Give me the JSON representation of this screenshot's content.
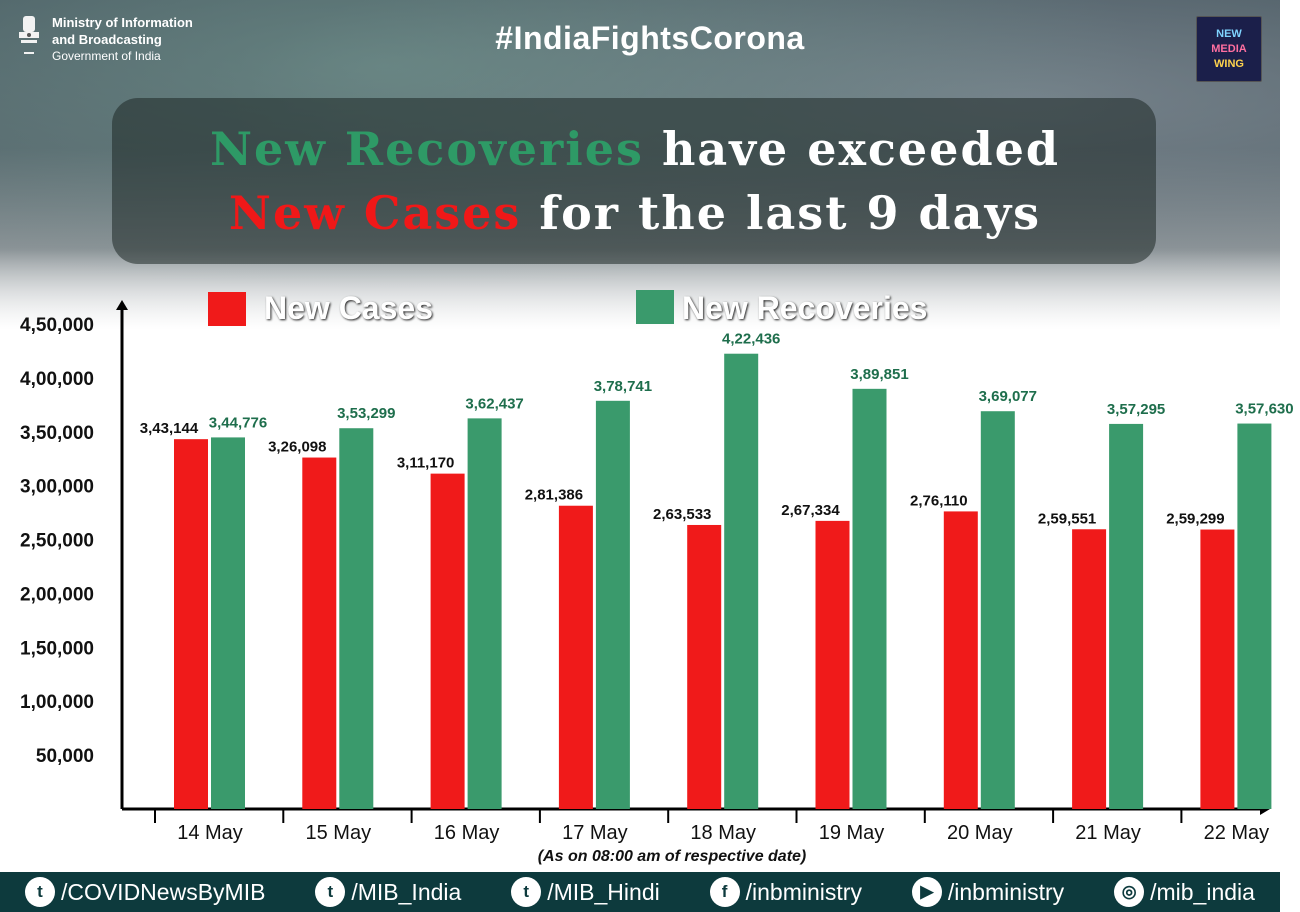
{
  "header": {
    "ministry_line1": "Ministry of Information",
    "ministry_line2": "and Broadcasting",
    "ministry_line3": "Government of India",
    "hashtag": "#IndiaFightsCorona",
    "logo_lines": [
      "NEW",
      "MEDIA",
      "WING"
    ]
  },
  "headline": {
    "line1_green": "New Recoveries",
    "line1_white": " have exceeded",
    "line2_red": "New Cases",
    "line2_white": " for the last 9 days"
  },
  "colors": {
    "cases": "#f01a1a",
    "recoveries": "#3a9a6c",
    "footer_bg": "#0d3a3d",
    "headline_green": "#2e9a66"
  },
  "chart_data": {
    "type": "bar",
    "categories": [
      "14 May",
      "15 May",
      "16 May",
      "17 May",
      "18 May",
      "19 May",
      "20 May",
      "21 May",
      "22 May"
    ],
    "series": [
      {
        "name": "New Cases",
        "values": [
          343144,
          326098,
          311170,
          281386,
          263533,
          267334,
          276110,
          259551,
          259299
        ],
        "labels": [
          "3,43,144",
          "3,26,098",
          "3,11,170",
          "2,81,386",
          "2,63,533",
          "2,67,334",
          "2,76,110",
          "2,59,551",
          "2,59,299"
        ]
      },
      {
        "name": "New Recoveries",
        "values": [
          344776,
          353299,
          362437,
          378741,
          422436,
          389851,
          369077,
          357295,
          357630
        ],
        "labels": [
          "3,44,776",
          "3,53,299",
          "3,62,437",
          "3,78,741",
          "4,22,436",
          "3,89,851",
          "3,69,077",
          "3,57,295",
          "3,57,630"
        ]
      }
    ],
    "yticks": [
      "50,000",
      "1,00,000",
      "1,50,000",
      "2,00,000",
      "2,50,000",
      "3,00,000",
      "3,50,000",
      "4,00,000",
      "4,50,000"
    ],
    "ytick_values": [
      50000,
      100000,
      150000,
      200000,
      250000,
      300000,
      350000,
      400000,
      450000
    ],
    "ylim": [
      0,
      450000
    ],
    "note": "(As on 08:00 am of respective date)",
    "legend_position": "top"
  },
  "footer": {
    "links": [
      {
        "icon": "twitter-icon",
        "label": "/COVIDNewsByMIB"
      },
      {
        "icon": "twitter-icon",
        "label": "/MIB_India"
      },
      {
        "icon": "twitter-icon",
        "label": "/MIB_Hindi"
      },
      {
        "icon": "facebook-icon",
        "label": "/inbministry"
      },
      {
        "icon": "youtube-icon",
        "label": "/inbministry"
      },
      {
        "icon": "instagram-icon",
        "label": "/mib_india"
      }
    ]
  }
}
